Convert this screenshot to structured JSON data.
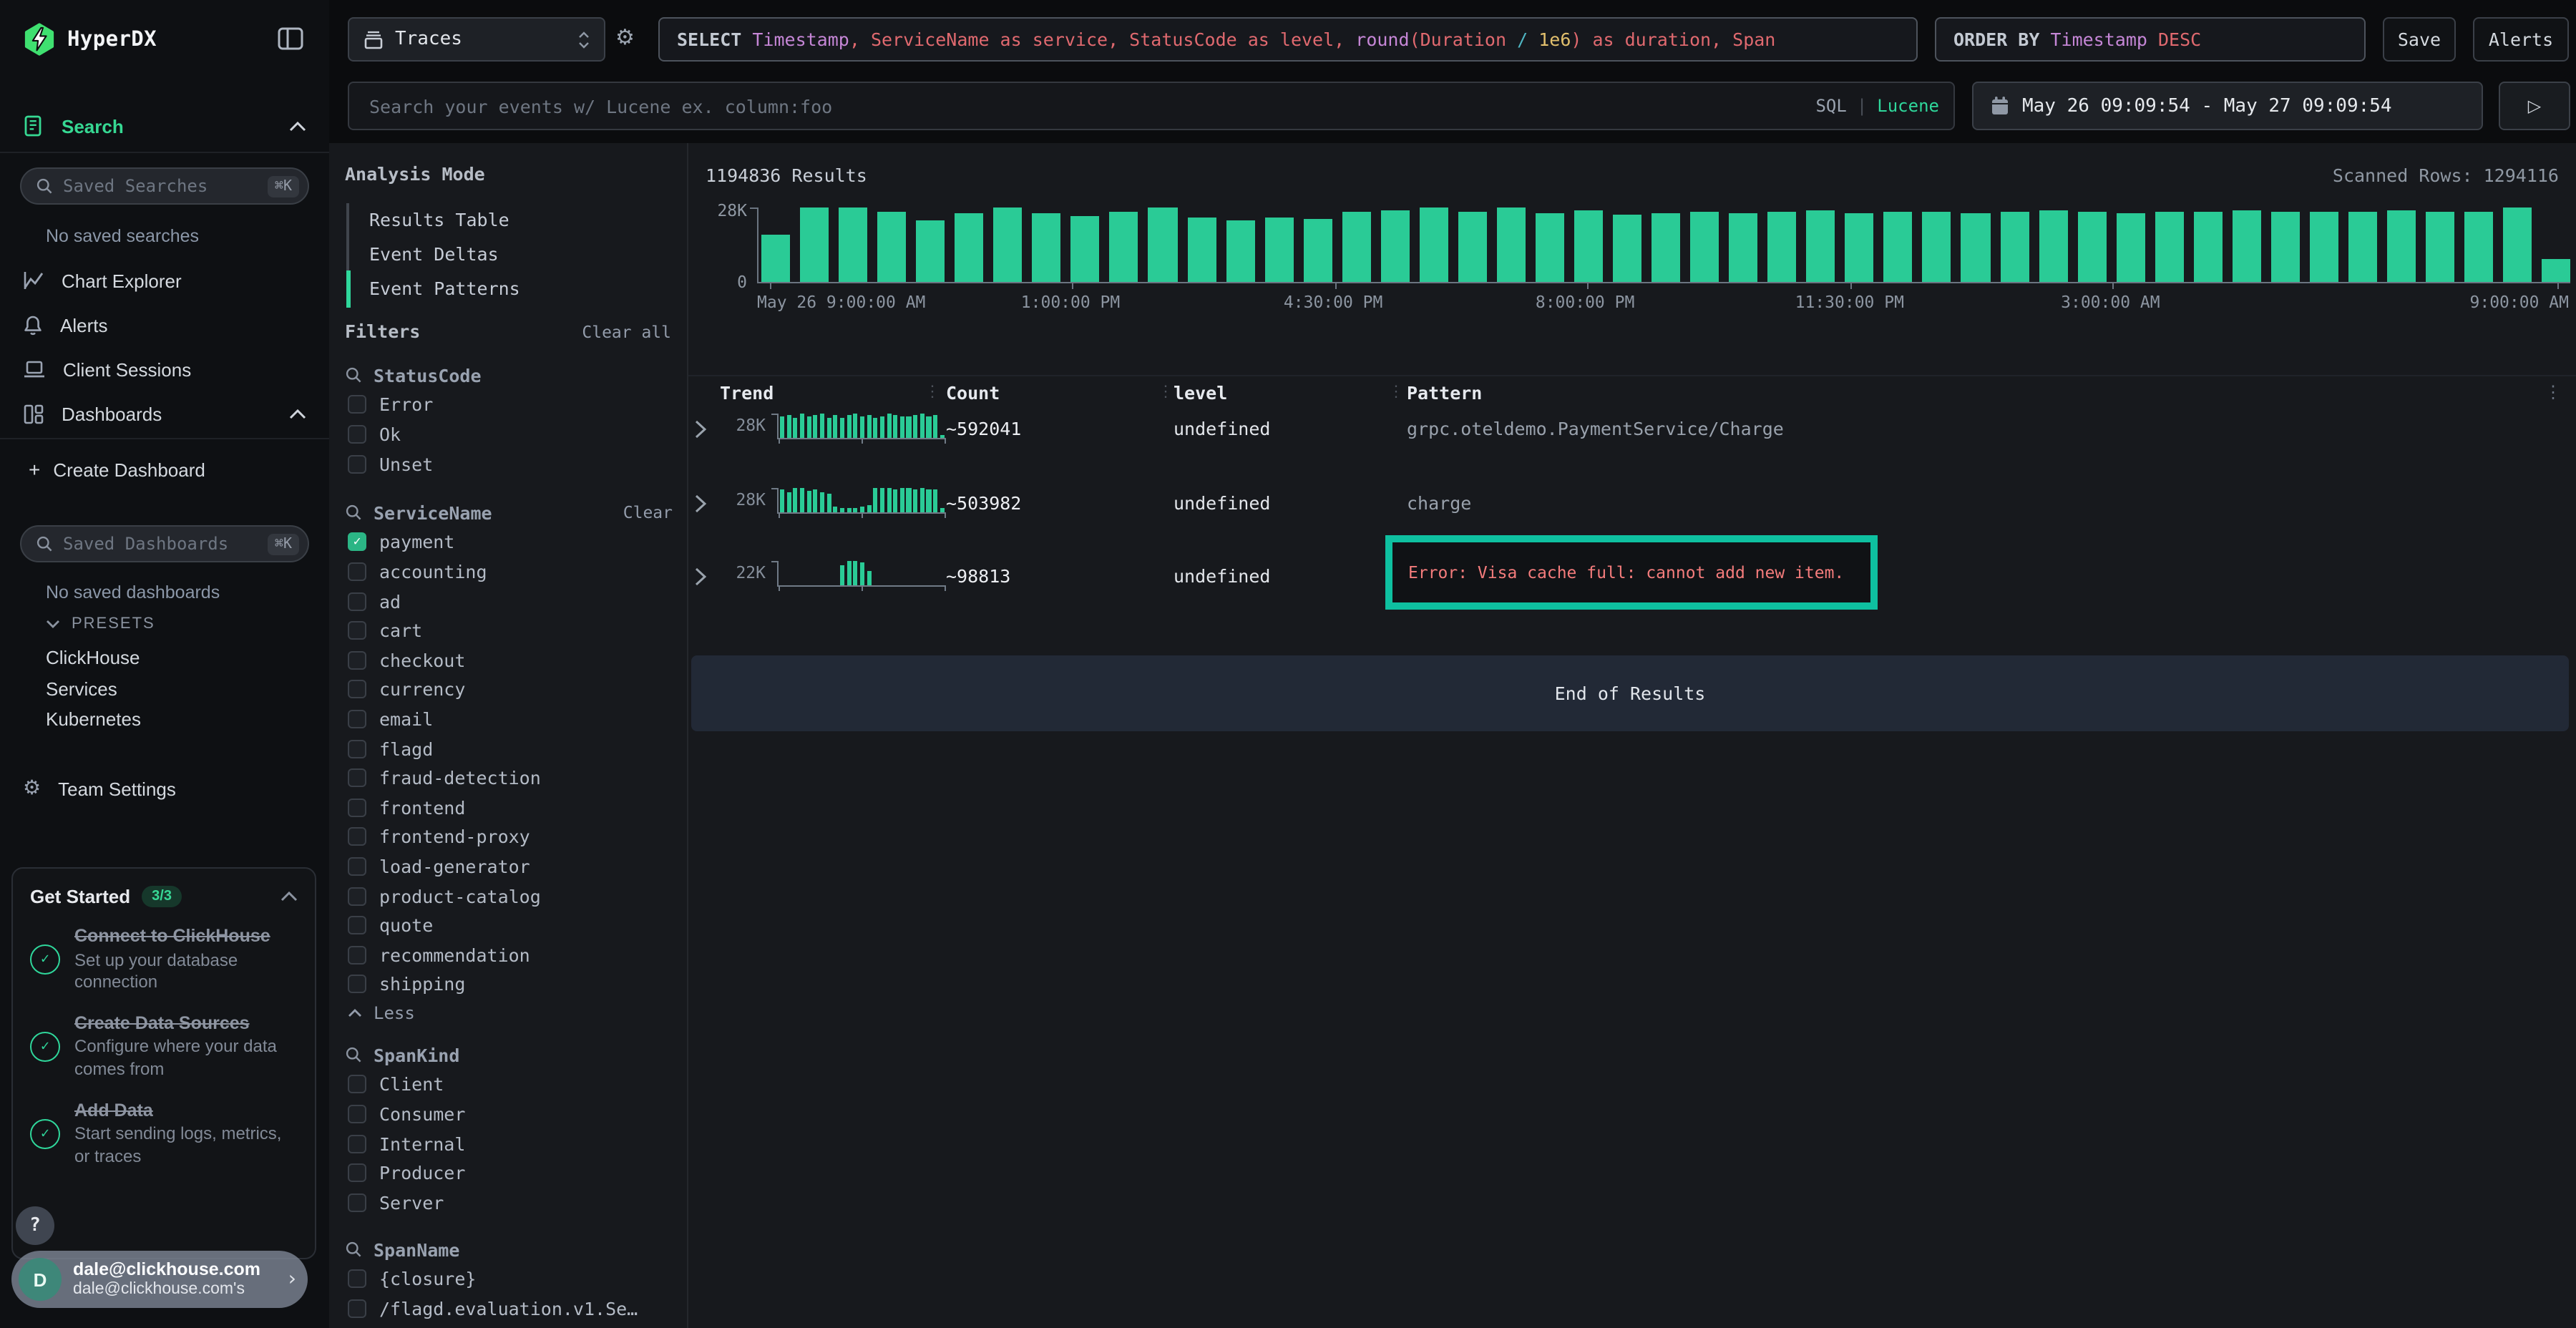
{
  "colors": {
    "accent_green": "#2fd79b",
    "bar_green": "#2acb96",
    "highlight_teal": "#0ec0a0",
    "error_red": "#f47c7c",
    "code_purple": "#c586d6",
    "code_red": "#e0696f",
    "code_yellow": "#e2c06d",
    "code_cyan": "#4fb6c4"
  },
  "sidebar": {
    "brand": "HyperDX",
    "search_nav": "Search",
    "saved_searches_placeholder": "Saved Searches",
    "saved_dashboards_placeholder": "Saved Dashboards",
    "shortcut": "⌘K",
    "no_saved_searches": "No saved searches",
    "no_saved_dashboards": "No saved dashboards",
    "nav": [
      {
        "label": "Chart Explorer"
      },
      {
        "label": "Alerts"
      },
      {
        "label": "Client Sessions"
      },
      {
        "label": "Dashboards"
      }
    ],
    "create_dashboard_plus": "+",
    "create_dashboard": "Create Dashboard",
    "presets_label": "PRESETS",
    "presets": [
      "ClickHouse",
      "Services",
      "Kubernetes"
    ],
    "team_settings": "Team Settings",
    "get_started": {
      "title": "Get Started",
      "badge": "3/3",
      "steps": [
        {
          "title": "Connect to ClickHouse",
          "desc": "Set up your database connection"
        },
        {
          "title": "Create Data Sources",
          "desc": "Configure where your data comes from"
        },
        {
          "title": "Add Data",
          "desc": "Start sending logs, metrics, or traces"
        }
      ]
    },
    "help_label": "?",
    "user": {
      "initial": "D",
      "email": "dale@clickhouse.com",
      "subtitle": "dale@clickhouse.com's"
    }
  },
  "header": {
    "source_label": "Traces",
    "sql_segments": [
      [
        "kw",
        "SELECT "
      ],
      [
        "purple",
        "Timestamp"
      ],
      [
        "red",
        ", ServiceName as service, StatusCode as level, "
      ],
      [
        "purple",
        "round"
      ],
      [
        "red",
        "(Duration "
      ],
      [
        "cyan",
        "/ "
      ],
      [
        "yellow",
        "1e6"
      ],
      [
        "red",
        ") as duration, Span"
      ]
    ],
    "order_segments": [
      [
        "kw",
        "ORDER BY "
      ],
      [
        "purple",
        "Timestamp "
      ],
      [
        "red",
        "DESC"
      ]
    ],
    "save_label": "Save",
    "alerts_label": "Alerts",
    "search_placeholder": "Search your events w/ Lucene ex. column:foo",
    "lang_sql": "SQL",
    "lang_divider": "|",
    "lang_lucene": "Lucene",
    "date_range": "May 26 09:09:54 - May 27 09:09:54"
  },
  "panel": {
    "analysis_mode_label": "Analysis Mode",
    "modes": [
      "Results Table",
      "Event Deltas",
      "Event Patterns"
    ],
    "active_mode_index": 2,
    "filters_label": "Filters",
    "clear_all_label": "Clear all",
    "groups": [
      {
        "name": "StatusCode",
        "items": [
          {
            "label": "Error"
          },
          {
            "label": "Ok"
          },
          {
            "label": "Unset"
          }
        ]
      },
      {
        "name": "ServiceName",
        "clear_label": "Clear",
        "less_label": "Less",
        "items": [
          {
            "label": "payment",
            "checked": true
          },
          {
            "label": "accounting"
          },
          {
            "label": "ad"
          },
          {
            "label": "cart"
          },
          {
            "label": "checkout"
          },
          {
            "label": "currency"
          },
          {
            "label": "email"
          },
          {
            "label": "flagd"
          },
          {
            "label": "fraud-detection"
          },
          {
            "label": "frontend"
          },
          {
            "label": "frontend-proxy"
          },
          {
            "label": "load-generator"
          },
          {
            "label": "product-catalog"
          },
          {
            "label": "quote"
          },
          {
            "label": "recommendation"
          },
          {
            "label": "shipping"
          }
        ]
      },
      {
        "name": "SpanKind",
        "items": [
          {
            "label": "Client"
          },
          {
            "label": "Consumer"
          },
          {
            "label": "Internal"
          },
          {
            "label": "Producer"
          },
          {
            "label": "Server"
          }
        ]
      },
      {
        "name": "SpanName",
        "items": [
          {
            "label": "{closure}"
          },
          {
            "label": "/flagd.evaluation.v1.Se…"
          }
        ]
      }
    ]
  },
  "results": {
    "count_text": "1194836 Results",
    "scanned_text": "Scanned Rows: 1294116",
    "end_text": "End of Results"
  },
  "chart_data": {
    "type": "bar",
    "title": "1194836 Results",
    "ylabel_top": "28K",
    "ylabel_bottom": "0",
    "ymax_value": 28000,
    "unit": "thousands of events per bucket",
    "x_ticks": [
      {
        "pos": 0.006,
        "label": "May 26 9:00:00 AM",
        "align": "left"
      },
      {
        "pos": 0.173,
        "label": "1:00:00 PM"
      },
      {
        "pos": 0.318,
        "label": "4:30:00 PM"
      },
      {
        "pos": 0.457,
        "label": "8:00:00 PM"
      },
      {
        "pos": 0.603,
        "label": "11:30:00 PM"
      },
      {
        "pos": 0.747,
        "label": "3:00:00 AM"
      },
      {
        "pos": 0.993,
        "label": "9:00:00 AM",
        "align": "right"
      }
    ],
    "values_k": [
      17.6,
      28,
      28,
      26.6,
      23,
      25.8,
      28,
      26,
      24.6,
      26.6,
      28,
      24.4,
      23.2,
      24.4,
      23.8,
      26.6,
      27.2,
      28,
      26.6,
      28,
      26,
      26.9,
      25.2,
      26,
      26.6,
      25.8,
      26.3,
      26.9,
      26,
      26.6,
      26.3,
      25.8,
      26.6,
      26.9,
      26.3,
      26,
      26.6,
      26.3,
      26.9,
      26.6,
      26.3,
      26.6,
      26.9,
      26.3,
      26.6,
      28,
      8.4
    ]
  },
  "table": {
    "columns": [
      "Trend",
      "Count",
      "level",
      "Pattern"
    ],
    "rows": [
      {
        "count": "~592041",
        "level": "undefined",
        "pattern": "grpc.oteldemo.PaymentService/Charge",
        "highlighted": false,
        "trend": {
          "ymax_label": "28K",
          "values": [
            0.88,
            0.95,
            0.82,
            1,
            0.9,
            0.96,
            1,
            0.85,
            0.92,
            0.8,
            0.95,
            1,
            0.9,
            0.96,
            0.84,
            0.9,
            1,
            0.95,
            0.86,
            0.9,
            0.96,
            1,
            0.9,
            0.95,
            0.12
          ]
        }
      },
      {
        "count": "~503982",
        "level": "undefined",
        "pattern": "charge",
        "highlighted": false,
        "trend": {
          "ymax_label": "28K",
          "values": [
            0.9,
            0.82,
            0.95,
            1,
            0.85,
            0.9,
            0.8,
            0.75,
            0.2,
            0.13,
            0.16,
            0.12,
            0.18,
            0.28,
            0.95,
            1,
            0.95,
            0.9,
            0.95,
            1,
            0.9,
            0.95,
            0.9,
            0.93,
            0.15
          ]
        }
      },
      {
        "count": "~98813",
        "level": "undefined",
        "pattern": "Error: Visa cache full: cannot add new item.",
        "highlighted": true,
        "trend": {
          "ymax_label": "22K",
          "values": [
            0,
            0,
            0,
            0,
            0,
            0,
            0,
            0,
            0,
            0.85,
            1,
            1,
            0.97,
            0.6,
            0,
            0,
            0,
            0,
            0,
            0,
            0,
            0,
            0,
            0,
            0
          ]
        }
      }
    ]
  }
}
